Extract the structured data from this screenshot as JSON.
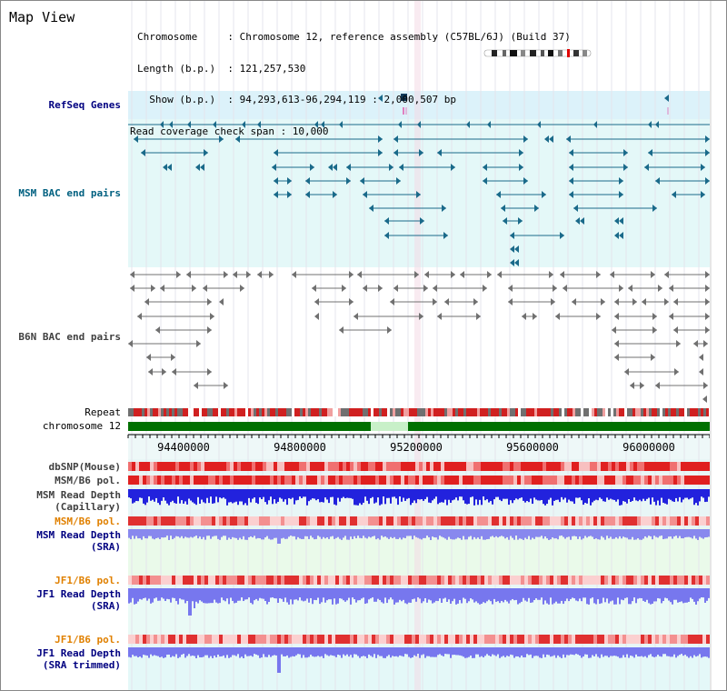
{
  "title": "Map View",
  "info": {
    "line1": "Chromosome     : Chromosome 12, reference assembly (C57BL/6J) (Build 37)",
    "line2": "Length (b.p.)  : 121,257,530",
    "line3": "  Show (b.p.)  : 94,293,613-96,294,119 : 2,000,507 bp",
    "line4": "Read coverage check span : 10,000"
  },
  "tracks": {
    "refseq": "RefSeq Genes",
    "msm_bac": "MSM BAC end pairs",
    "b6n_bac": "B6N BAC end pairs",
    "repeat": "Repeat",
    "chromosome": "chromosome 12",
    "dbsnp": "dbSNP(Mouse)",
    "msm_b6_pol": "MSM/B6 pol.",
    "msm_depth_cap_1": "MSM Read Depth",
    "msm_depth_cap_2": "(Capillary)",
    "msm_b6_pol2": "MSM/B6 pol.",
    "msm_depth_sra_1": "MSM Read Depth",
    "msm_depth_sra_2": "(SRA)",
    "jf1_b6_pol": "JF1/B6 pol.",
    "jf1_depth_sra_1": "JF1 Read Depth",
    "jf1_depth_sra_2": "(SRA)",
    "jf1_b6_pol2": "JF1/B6 pol.",
    "jf1_depth_trim_1": "JF1 Read Depth",
    "jf1_depth_trim_2": "(SRA trimmed)"
  },
  "axis": {
    "ticks": [
      "94400000",
      "94800000",
      "95200000",
      "95600000",
      "96000000"
    ]
  },
  "colors": {
    "navy_label": "#000080",
    "teal_label": "#006080",
    "orange_label": "#e08000",
    "refseq_bg": "#dcf2fa",
    "msm_bg": "#e0f8f8",
    "b6n_bg": "#ffffff",
    "gene_color": "#1a6a8a",
    "bac_gray": "#707070",
    "chrom_green": "#007000",
    "depth_blue": "#2020e0",
    "depth_light": "#8080f0",
    "pol_red": "#e03030"
  }
}
